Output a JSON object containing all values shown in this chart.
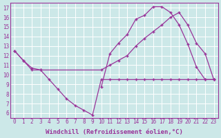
{
  "bg_color": "#cce8e8",
  "grid_color": "#ffffff",
  "line_color": "#993399",
  "marker": "+",
  "xlabel": "Windchill (Refroidissement éolien,°C)",
  "xlim": [
    -0.5,
    23.5
  ],
  "ylim": [
    5.5,
    17.5
  ],
  "xticks": [
    0,
    1,
    2,
    3,
    4,
    5,
    6,
    7,
    8,
    9,
    10,
    11,
    12,
    13,
    14,
    15,
    16,
    17,
    18,
    19,
    20,
    21,
    22,
    23
  ],
  "yticks": [
    6,
    7,
    8,
    9,
    10,
    11,
    12,
    13,
    14,
    15,
    16,
    17
  ],
  "line_arch_x": [
    10,
    11,
    12,
    13,
    14,
    15,
    16,
    17,
    18,
    19,
    20,
    21,
    22,
    23
  ],
  "line_arch_y": [
    8.7,
    12.2,
    13.3,
    14.2,
    15.8,
    16.2,
    17.1,
    17.1,
    16.5,
    15.2,
    13.2,
    10.8,
    9.5,
    9.5
  ],
  "line_diag_x": [
    0,
    1,
    2,
    3,
    10,
    11,
    12,
    13,
    14,
    15,
    16,
    17,
    18,
    19,
    20,
    21,
    22,
    23
  ],
  "line_diag_y": [
    12.5,
    11.5,
    10.7,
    10.5,
    10.5,
    11.0,
    11.5,
    12.0,
    13.0,
    13.8,
    14.5,
    15.2,
    16.0,
    16.5,
    15.2,
    13.3,
    12.2,
    9.5
  ],
  "line_flat_x": [
    0,
    1,
    2,
    3,
    4,
    5,
    6,
    7,
    8,
    9,
    10,
    11,
    12,
    13,
    14,
    15,
    16,
    17,
    18,
    19,
    20,
    21,
    22,
    23
  ],
  "line_flat_y": [
    12.5,
    11.5,
    10.5,
    10.5,
    9.5,
    8.5,
    7.5,
    6.8,
    6.3,
    5.8,
    9.5,
    9.5,
    9.5,
    9.5,
    9.5,
    9.5,
    9.5,
    9.5,
    9.5,
    9.5,
    9.5,
    9.5,
    9.5,
    9.5
  ],
  "tick_fontsize": 5.5,
  "axis_fontsize": 6.5
}
